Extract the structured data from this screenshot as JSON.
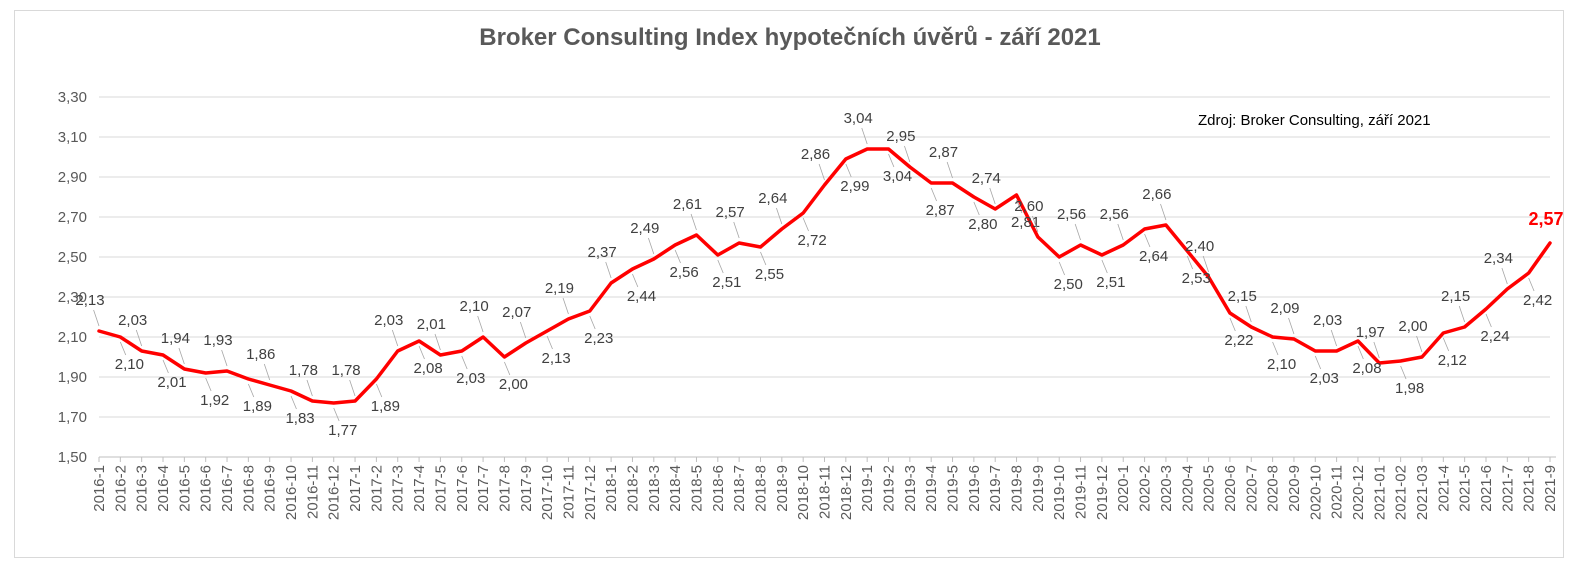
{
  "chart_data": {
    "type": "line",
    "title": "Broker Consulting Index hypotečních úvěrů - září 2021",
    "annotation": "Zdroj: Broker Consulting, září 2021",
    "xlabel": "",
    "ylabel": "",
    "ylim": [
      1.5,
      3.3
    ],
    "y_ticks": [
      "1,50",
      "1,70",
      "1,90",
      "2,10",
      "2,30",
      "2,50",
      "2,70",
      "2,90",
      "3,10",
      "3,30"
    ],
    "grid": true,
    "line_color": "#ff0000",
    "highlight_color": "#ff0000",
    "categories": [
      "2016-1",
      "2016-2",
      "2016-3",
      "2016-4",
      "2016-5",
      "2016-6",
      "2016-7",
      "2016-8",
      "2016-9",
      "2016-10",
      "2016-11",
      "2016-12",
      "2017-1",
      "2017-2",
      "2017-3",
      "2017-4",
      "2017-5",
      "2017-6",
      "2017-7",
      "2017-8",
      "2017-9",
      "2017-10",
      "2017-11",
      "2017-12",
      "2018-1",
      "2018-2",
      "2018-3",
      "2018-4",
      "2018-5",
      "2018-6",
      "2018-7",
      "2018-8",
      "2018-9",
      "2018-10",
      "2018-11",
      "2018-12",
      "2019-1",
      "2019-2",
      "2019-3",
      "2019-4",
      "2019-5",
      "2019-6",
      "2019-7",
      "2019-8",
      "2019-9",
      "2019-10",
      "2019-11",
      "2019-12",
      "2020-1",
      "2020-2",
      "2020-3",
      "2020-4",
      "2020-5",
      "2020-6",
      "2020-7",
      "2020-8",
      "2020-9",
      "2020-10",
      "2020-11",
      "2020-12",
      "2021-01",
      "2021-02",
      "2021-03",
      "2021-4",
      "2021-5",
      "2021-6",
      "2021-7",
      "2021-8",
      "2021-9"
    ],
    "values": [
      2.13,
      2.1,
      2.03,
      2.01,
      1.94,
      1.92,
      1.93,
      1.89,
      1.86,
      1.83,
      1.78,
      1.77,
      1.78,
      1.89,
      2.03,
      2.08,
      2.01,
      2.03,
      2.1,
      2.0,
      2.07,
      2.13,
      2.19,
      2.23,
      2.37,
      2.44,
      2.49,
      2.56,
      2.61,
      2.51,
      2.57,
      2.55,
      2.64,
      2.72,
      2.86,
      2.99,
      3.04,
      3.04,
      2.95,
      2.87,
      2.87,
      2.8,
      2.74,
      2.81,
      2.6,
      2.5,
      2.56,
      2.51,
      2.56,
      2.64,
      2.66,
      2.53,
      2.4,
      2.22,
      2.15,
      2.1,
      2.09,
      2.03,
      2.03,
      2.08,
      1.97,
      1.98,
      2.0,
      2.12,
      2.15,
      2.24,
      2.34,
      2.42,
      2.57
    ],
    "value_labels": [
      "2,13",
      "2,10",
      "2,03",
      "2,01",
      "1,94",
      "1,92",
      "1,93",
      "1,89",
      "1,86",
      "1,83",
      "1,78",
      "1,77",
      "1,78",
      "1,89",
      "2,03",
      "2,08",
      "2,01",
      "2,03",
      "2,10",
      "2,00",
      "2,07",
      "2,13",
      "2,19",
      "2,23",
      "2,37",
      "2,44",
      "2,49",
      "2,56",
      "2,61",
      "2,51",
      "2,57",
      "2,55",
      "2,64",
      "2,72",
      "2,86",
      "2,99",
      "3,04",
      "3,04",
      "2,95",
      "2,87",
      "2,87",
      "2,80",
      "2,74",
      "2,81",
      "2,60",
      "2,50",
      "2,56",
      "2,51",
      "2,56",
      "2,64",
      "2,66",
      "2,53",
      "2,40",
      "2,22",
      "2,15",
      "2,10",
      "2,09",
      "2,03",
      "2,03",
      "2,08",
      "1,97",
      "1,98",
      "2,00",
      "2,12",
      "2,15",
      "2,24",
      "2,34",
      "2,42",
      "2,57"
    ]
  }
}
